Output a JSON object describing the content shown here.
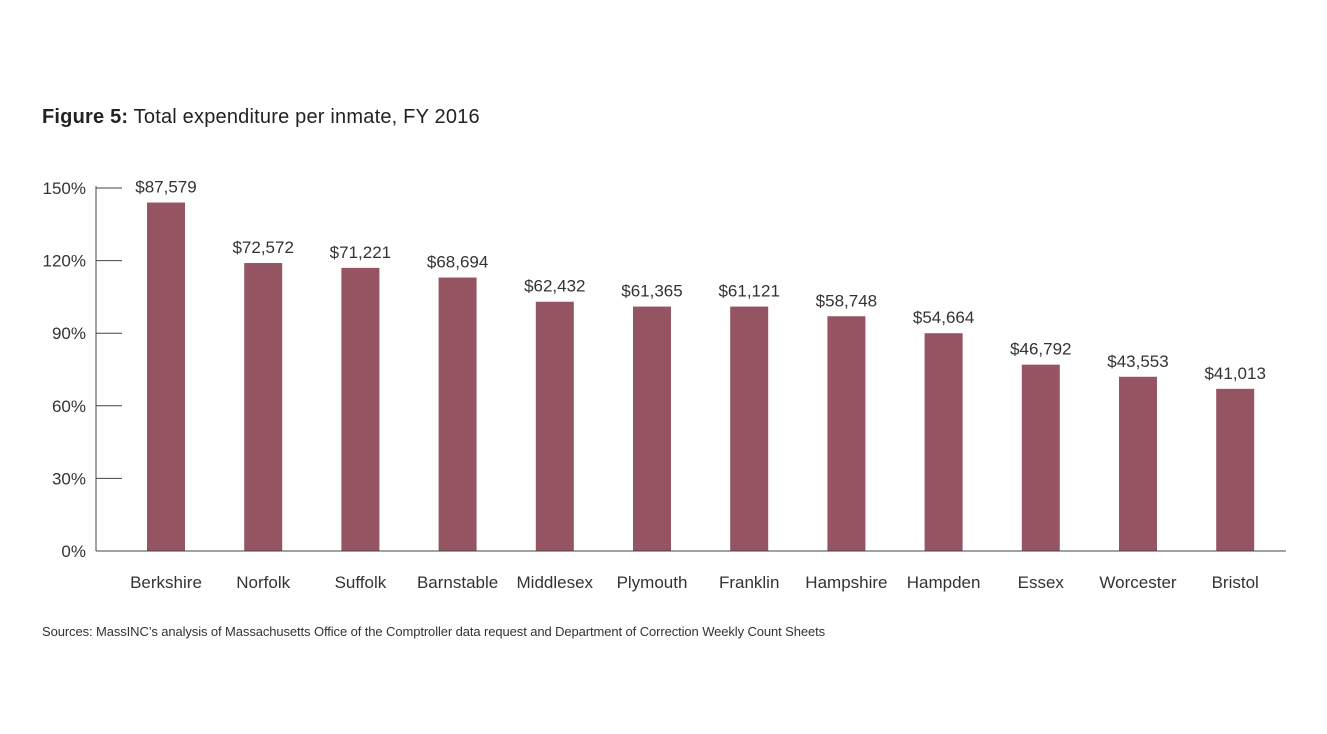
{
  "figure": {
    "label": "Figure 5:",
    "title": "Total expenditure per inmate, FY 2016"
  },
  "chart_data": {
    "type": "bar",
    "title": "Total expenditure per inmate, FY 2016",
    "xlabel": "",
    "ylabel": "",
    "categories": [
      "Berkshire",
      "Norfolk",
      "Suffolk",
      "Barnstable",
      "Middlesex",
      "Plymouth",
      "Franklin",
      "Hampshire",
      "Hampden",
      "Essex",
      "Worcester",
      "Bristol"
    ],
    "values": [
      87579,
      72572,
      71221,
      68694,
      62432,
      61365,
      61121,
      58748,
      54664,
      46792,
      43553,
      41013
    ],
    "value_labels": [
      "$87,579",
      "$72,572",
      "$71,221",
      "$68,694",
      "$62,432",
      "$61,365",
      "$61,121",
      "$58,748",
      "$54,664",
      "$46,792",
      "$43,553",
      "$41,013"
    ],
    "percent_of_state_average": [
      144,
      119,
      117,
      113,
      103,
      101,
      101,
      97,
      90,
      77,
      72,
      67
    ],
    "y_axis": {
      "ticks": [
        "0%",
        "30%",
        "60%",
        "90%",
        "120%",
        "150%"
      ],
      "tick_values": [
        0,
        30,
        60,
        90,
        120,
        150
      ],
      "ylim": [
        0,
        150
      ]
    },
    "bar_color": "#955461",
    "grid": false
  },
  "source": "Sources: MassINC’s analysis of Massachusetts Office of the Comptroller data request and Department of Correction Weekly Count Sheets"
}
